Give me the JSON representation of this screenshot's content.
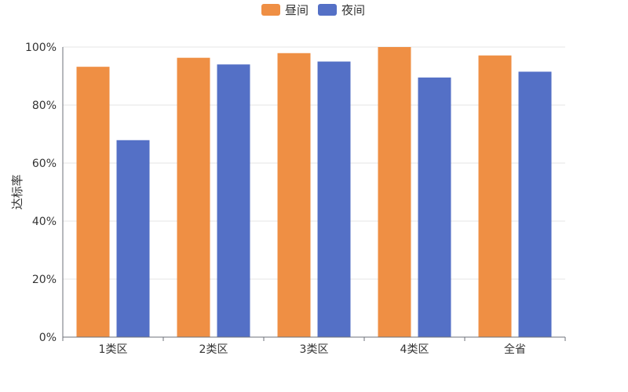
{
  "chart_data": {
    "type": "bar",
    "categories": [
      "1类区",
      "2类区",
      "3类区",
      "4类区",
      "全省"
    ],
    "series": [
      {
        "name": "昼间",
        "values": [
          93.2,
          96.3,
          97.9,
          100,
          97.1
        ],
        "color": "#EF8F44"
      },
      {
        "name": "夜间",
        "values": [
          67.9,
          94.0,
          95.0,
          89.5,
          91.5
        ],
        "color": "#5470C6"
      }
    ],
    "title": "",
    "xlabel": "",
    "ylabel": "达标率",
    "ylim": [
      0,
      100
    ],
    "yticks": [
      "0%",
      "20%",
      "40%",
      "60%",
      "80%",
      "100%"
    ],
    "grid": true,
    "legend_position": "top-center"
  }
}
